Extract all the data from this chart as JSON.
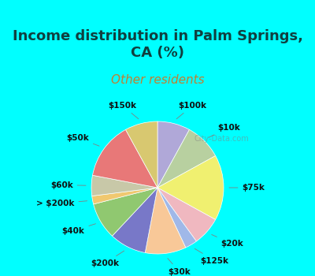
{
  "title": "Income distribution in Palm Springs,\nCA (%)",
  "subtitle": "Other residents",
  "watermark": "City-Data.com",
  "labels": [
    "$100k",
    "$10k",
    "$75k",
    "$20k",
    "$125k",
    "$30k",
    "$200k",
    "$40k",
    "> $200k",
    "$60k",
    "$50k",
    "$150k"
  ],
  "values": [
    8,
    9,
    16,
    7,
    3,
    10,
    9,
    9,
    2,
    5,
    14,
    8
  ],
  "colors": [
    "#b0a8d8",
    "#b8d0a0",
    "#f0f070",
    "#f0b8c0",
    "#a0b8e8",
    "#f8c898",
    "#7878c8",
    "#90c870",
    "#f0c870",
    "#c8c8a8",
    "#e87878",
    "#d8c870"
  ],
  "bg_color_outer": "#00ffff",
  "bg_color_inner": "#e8f0e0",
  "title_color": "#104040",
  "subtitle_color": "#c08030",
  "label_fontsize": 7.5,
  "title_fontsize": 13,
  "subtitle_fontsize": 11
}
